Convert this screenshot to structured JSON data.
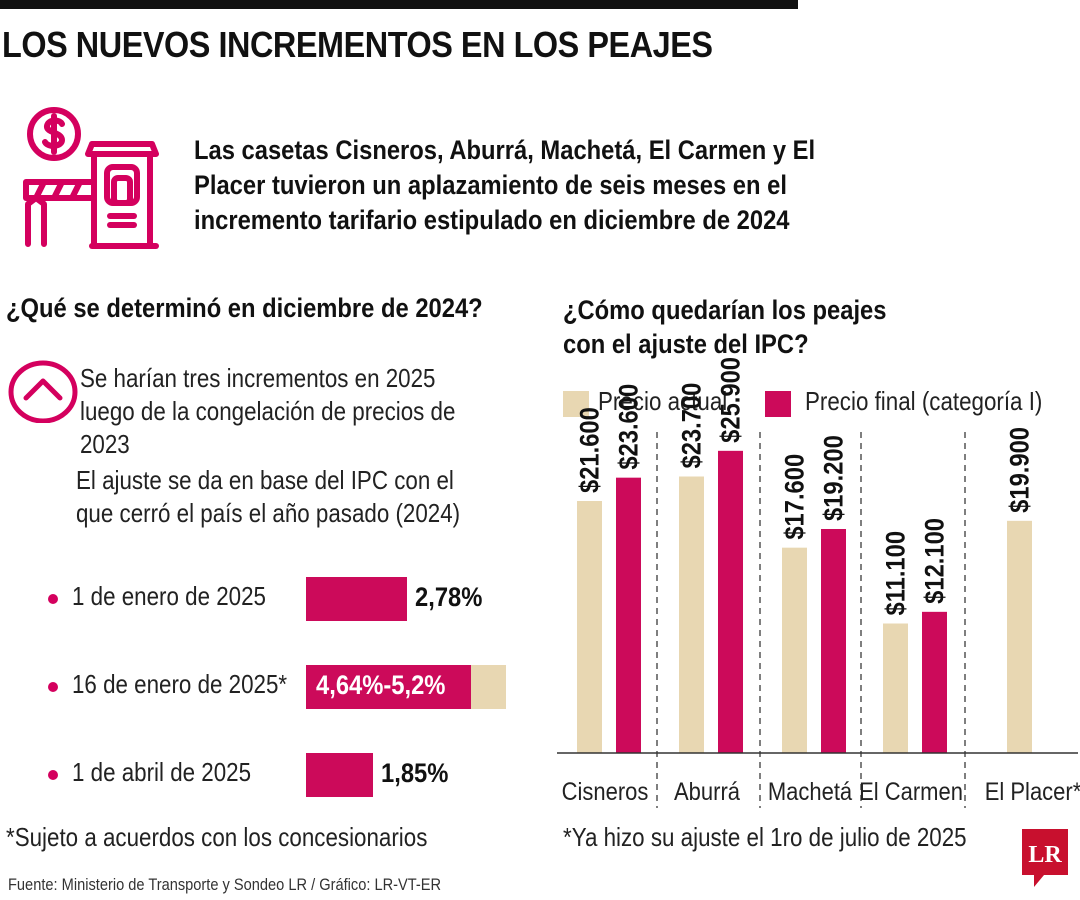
{
  "header": {
    "title": "LOS NUEVOS INCREMENTOS EN LOS PEAJES",
    "intro": "Las casetas Cisneros, Aburrá, Machetá, El Carmen y El Placer tuvieron un aplazamiento de seis meses en el incremento tarifario estipulado en diciembre de 2024"
  },
  "left": {
    "title": "¿Qué se determinó en diciembre de 2024?",
    "paragraph1": "Se harían tres incrementos en 2025 luego de la congelación de precios de 2023",
    "paragraph2": "El ajuste se da en base del IPC con el que cerró el país el año pasado (2024)",
    "increments": [
      {
        "date": "1 de enero de 2025",
        "value_label": "2,78%",
        "pct": 2.78
      },
      {
        "date": "16 de enero de 2025*",
        "value_label": "4,64%-5,2%",
        "pct": 4.64,
        "pct_max": 5.2
      },
      {
        "date": "1 de abril de 2025",
        "value_label": "1,85%",
        "pct": 1.85
      }
    ],
    "note": "*Sujeto a acuerdos con los concesionarios",
    "source": "Fuente: Ministerio de Transporte y Sondeo LR / Gráfico: LR-VT-ER"
  },
  "right": {
    "title": "¿Cómo quedarían los peajes con el ajuste del IPC?",
    "note": "*Ya hizo su ajuste el 1ro de julio de 2025"
  },
  "logo": {
    "text": "LR"
  },
  "colors": {
    "magenta": "#cc0a5a",
    "beige": "#e8d7b2",
    "dot": "#d4005e"
  },
  "chart_data": {
    "type": "bar",
    "title": "¿Cómo quedarían los peajes con el ajuste del IPC?",
    "categories": [
      "Cisneros",
      "Aburrá",
      "Machetá",
      "El Carmen",
      "El Placer*"
    ],
    "series": [
      {
        "name": "Precio actual",
        "color": "#e8d7b2",
        "values": [
          21600,
          23700,
          17600,
          11100,
          19900
        ],
        "labels": [
          "$21.600",
          "$23.700",
          "$17.600",
          "$11.100",
          "$19.900"
        ]
      },
      {
        "name": "Precio final (categoría I)",
        "color": "#cc0a5a",
        "values": [
          23600,
          25900,
          19200,
          12100,
          null
        ],
        "labels": [
          "$23.600",
          "$25.900",
          "$19.200",
          "$12.100",
          null
        ]
      }
    ],
    "ylim": [
      0,
      27000
    ],
    "xlabel": "",
    "ylabel": "",
    "grid": false,
    "legend": "top"
  }
}
